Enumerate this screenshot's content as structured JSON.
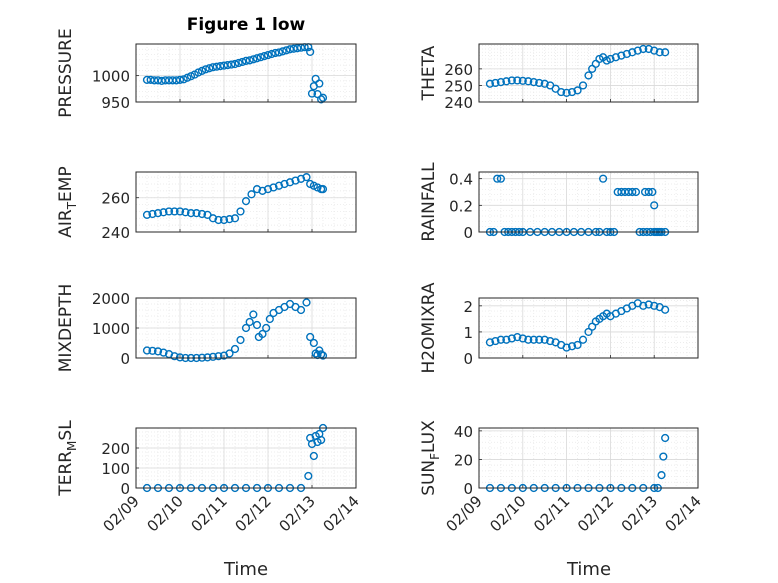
{
  "figure": {
    "title": "Figure 1 low",
    "marker_color": "#0072BD",
    "grid_color": "#e6e6e6",
    "axis_color": "#262626"
  },
  "chart_data": [
    {
      "type": "scatter",
      "ylabel": "PRESSURE",
      "xlim": [
        "02/09",
        "02/14"
      ],
      "ylim": [
        950,
        1060
      ],
      "yticks": [
        "950",
        "1000"
      ],
      "grid": "on",
      "x": [
        "02/09 06:00",
        "02/09 08:00",
        "02/09 10:00",
        "02/09 12:00",
        "02/09 14:00",
        "02/09 16:00",
        "02/09 18:00",
        "02/09 20:00",
        "02/09 22:00",
        "02/10 00:00",
        "02/10 02:00",
        "02/10 04:00",
        "02/10 06:00",
        "02/10 08:00",
        "02/10 10:00",
        "02/10 12:00",
        "02/10 14:00",
        "02/10 16:00",
        "02/10 18:00",
        "02/10 20:00",
        "02/10 22:00",
        "02/11 00:00",
        "02/11 02:00",
        "02/11 04:00",
        "02/11 06:00",
        "02/11 08:00",
        "02/11 10:00",
        "02/11 12:00",
        "02/11 14:00",
        "02/11 16:00",
        "02/11 18:00",
        "02/11 20:00",
        "02/11 22:00",
        "02/12 00:00",
        "02/12 02:00",
        "02/12 04:00",
        "02/12 06:00",
        "02/12 08:00",
        "02/12 10:00",
        "02/12 12:00",
        "02/12 14:00",
        "02/12 16:00",
        "02/12 18:00",
        "02/12 20:00",
        "02/12 22:00",
        "02/12 23:00",
        "02/13 00:00",
        "02/13 01:00",
        "02/13 02:00",
        "02/13 03:00",
        "02/13 04:00",
        "02/13 05:00",
        "02/13 06:00"
      ],
      "y": [
        992,
        992,
        991,
        991,
        990,
        991,
        991,
        991,
        991,
        992,
        993,
        996,
        999,
        1002,
        1006,
        1009,
        1012,
        1014,
        1016,
        1017,
        1018,
        1019,
        1020,
        1021,
        1022,
        1024,
        1026,
        1028,
        1029,
        1031,
        1033,
        1035,
        1037,
        1039,
        1041,
        1043,
        1044,
        1046,
        1048,
        1050,
        1051,
        1052,
        1053,
        1054,
        1054,
        1045,
        966,
        980,
        994,
        965,
        985,
        955,
        958
      ]
    },
    {
      "type": "scatter",
      "ylabel": "THETA",
      "xlim": [
        "02/09",
        "02/14"
      ],
      "ylim": [
        240,
        275
      ],
      "yticks": [
        "240",
        "250",
        "260"
      ],
      "grid": "on",
      "x": [
        "02/09 06:00",
        "02/09 09:00",
        "02/09 12:00",
        "02/09 15:00",
        "02/09 18:00",
        "02/09 21:00",
        "02/10 00:00",
        "02/10 03:00",
        "02/10 06:00",
        "02/10 09:00",
        "02/10 12:00",
        "02/10 15:00",
        "02/10 18:00",
        "02/10 21:00",
        "02/11 00:00",
        "02/11 03:00",
        "02/11 06:00",
        "02/11 09:00",
        "02/11 12:00",
        "02/11 14:00",
        "02/11 16:00",
        "02/11 18:00",
        "02/11 20:00",
        "02/11 22:00",
        "02/12 00:00",
        "02/12 03:00",
        "02/12 06:00",
        "02/12 09:00",
        "02/12 12:00",
        "02/12 15:00",
        "02/12 18:00",
        "02/12 21:00",
        "02/13 00:00",
        "02/13 03:00",
        "02/13 06:00"
      ],
      "y": [
        251,
        251.5,
        252,
        252.5,
        253,
        253,
        252.8,
        252.5,
        252,
        251.5,
        251,
        250,
        248,
        246,
        245.5,
        246,
        247,
        250,
        256,
        260,
        263,
        266,
        267,
        265,
        266,
        267,
        268,
        269,
        270,
        271,
        272,
        272,
        271,
        270,
        270
      ]
    },
    {
      "type": "scatter",
      "ylabel": "AIR_TEMP",
      "xlim": [
        "02/09",
        "02/14"
      ],
      "ylim": [
        240,
        275
      ],
      "yticks": [
        "240",
        "260"
      ],
      "grid": "on",
      "x": [
        "02/09 06:00",
        "02/09 09:00",
        "02/09 12:00",
        "02/09 15:00",
        "02/09 18:00",
        "02/09 21:00",
        "02/10 00:00",
        "02/10 03:00",
        "02/10 06:00",
        "02/10 09:00",
        "02/10 12:00",
        "02/10 15:00",
        "02/10 18:00",
        "02/10 21:00",
        "02/11 00:00",
        "02/11 03:00",
        "02/11 06:00",
        "02/11 09:00",
        "02/11 12:00",
        "02/11 15:00",
        "02/11 18:00",
        "02/11 21:00",
        "02/12 00:00",
        "02/12 03:00",
        "02/12 06:00",
        "02/12 09:00",
        "02/12 12:00",
        "02/12 15:00",
        "02/12 18:00",
        "02/12 21:00",
        "02/12 23:00",
        "02/13 01:00",
        "02/13 03:00",
        "02/13 05:00",
        "02/13 06:00"
      ],
      "y": [
        250,
        250.5,
        251,
        251.5,
        252,
        252,
        252,
        251.5,
        251,
        251,
        250.5,
        250,
        248,
        247,
        247,
        247.5,
        248,
        252,
        258,
        262,
        265,
        264,
        265,
        266,
        267,
        268,
        269,
        270,
        271,
        272,
        268,
        267,
        266,
        265,
        265
      ]
    },
    {
      "type": "scatter",
      "ylabel": "RAINFALL",
      "xlim": [
        "02/09",
        "02/14"
      ],
      "ylim": [
        0,
        0.45
      ],
      "yticks": [
        "0",
        "0.2",
        "0.4"
      ],
      "grid": "on",
      "x": [
        "02/09 06:00",
        "02/09 08:00",
        "02/09 10:00",
        "02/09 12:00",
        "02/09 14:00",
        "02/09 16:00",
        "02/09 18:00",
        "02/09 20:00",
        "02/09 22:00",
        "02/10 00:00",
        "02/10 04:00",
        "02/10 08:00",
        "02/10 12:00",
        "02/10 16:00",
        "02/10 20:00",
        "02/11 00:00",
        "02/11 04:00",
        "02/11 08:00",
        "02/11 12:00",
        "02/11 16:00",
        "02/11 18:00",
        "02/11 20:00",
        "02/11 22:00",
        "02/12 00:00",
        "02/12 02:00",
        "02/12 04:00",
        "02/12 06:00",
        "02/12 08:00",
        "02/12 10:00",
        "02/12 12:00",
        "02/12 14:00",
        "02/12 16:00",
        "02/12 18:00",
        "02/12 20:00",
        "02/12 22:00",
        "02/13 00:00",
        "02/13 01:00",
        "02/13 02:00",
        "02/13 03:00",
        "02/13 04:00",
        "02/13 06:00",
        "02/12 19:00",
        "02/12 21:00",
        "02/12 23:00",
        "02/13 00:00"
      ],
      "y": [
        0,
        0,
        0.4,
        0.4,
        0,
        0,
        0,
        0,
        0,
        0,
        0,
        0,
        0,
        0,
        0,
        0,
        0,
        0,
        0,
        0,
        0,
        0.4,
        0,
        0,
        0,
        0.3,
        0.3,
        0.3,
        0.3,
        0.3,
        0.3,
        0,
        0,
        0,
        0,
        0,
        0,
        0,
        0,
        0,
        0,
        0.3,
        0.3,
        0.3,
        0.2
      ]
    },
    {
      "type": "scatter",
      "ylabel": "MIXDEPTH",
      "xlim": [
        "02/09",
        "02/14"
      ],
      "ylim": [
        0,
        2000
      ],
      "yticks": [
        "0",
        "1000",
        "2000"
      ],
      "grid": "on",
      "x": [
        "02/09 06:00",
        "02/09 09:00",
        "02/09 12:00",
        "02/09 15:00",
        "02/09 18:00",
        "02/09 21:00",
        "02/10 00:00",
        "02/10 03:00",
        "02/10 06:00",
        "02/10 09:00",
        "02/10 12:00",
        "02/10 15:00",
        "02/10 18:00",
        "02/10 21:00",
        "02/11 00:00",
        "02/11 03:00",
        "02/11 06:00",
        "02/11 09:00",
        "02/11 12:00",
        "02/11 14:00",
        "02/11 16:00",
        "02/11 18:00",
        "02/11 19:00",
        "02/11 21:00",
        "02/11 23:00",
        "02/12 01:00",
        "02/12 03:00",
        "02/12 06:00",
        "02/12 09:00",
        "02/12 12:00",
        "02/12 15:00",
        "02/12 18:00",
        "02/12 21:00",
        "02/12 23:00",
        "02/13 01:00",
        "02/13 02:00",
        "02/13 03:00",
        "02/13 04:00",
        "02/13 05:00",
        "02/13 06:00"
      ],
      "y": [
        250,
        240,
        220,
        180,
        130,
        60,
        20,
        0,
        0,
        0,
        10,
        20,
        40,
        60,
        80,
        150,
        300,
        600,
        1000,
        1200,
        1450,
        1100,
        700,
        800,
        1000,
        1300,
        1500,
        1600,
        1700,
        1800,
        1700,
        1600,
        1850,
        700,
        500,
        150,
        100,
        250,
        120,
        80
      ]
    },
    {
      "type": "scatter",
      "ylabel": "H2OMIXRA",
      "xlim": [
        "02/09",
        "02/14"
      ],
      "ylim": [
        0,
        2.3
      ],
      "yticks": [
        "0",
        "1",
        "2"
      ],
      "grid": "on",
      "x": [
        "02/09 06:00",
        "02/09 09:00",
        "02/09 12:00",
        "02/09 15:00",
        "02/09 18:00",
        "02/09 21:00",
        "02/10 00:00",
        "02/10 03:00",
        "02/10 06:00",
        "02/10 09:00",
        "02/10 12:00",
        "02/10 15:00",
        "02/10 18:00",
        "02/10 21:00",
        "02/11 00:00",
        "02/11 03:00",
        "02/11 06:00",
        "02/11 09:00",
        "02/11 12:00",
        "02/11 14:00",
        "02/11 16:00",
        "02/11 18:00",
        "02/11 20:00",
        "02/11 22:00",
        "02/12 00:00",
        "02/12 03:00",
        "02/12 06:00",
        "02/12 09:00",
        "02/12 12:00",
        "02/12 15:00",
        "02/12 18:00",
        "02/12 21:00",
        "02/13 00:00",
        "02/13 03:00",
        "02/13 06:00"
      ],
      "y": [
        0.6,
        0.65,
        0.7,
        0.7,
        0.75,
        0.8,
        0.75,
        0.7,
        0.7,
        0.7,
        0.7,
        0.65,
        0.6,
        0.5,
        0.4,
        0.45,
        0.5,
        0.7,
        1.0,
        1.2,
        1.4,
        1.5,
        1.6,
        1.7,
        1.6,
        1.7,
        1.8,
        1.9,
        2.0,
        2.1,
        2.0,
        2.05,
        2.0,
        1.95,
        1.85
      ]
    },
    {
      "type": "scatter",
      "ylabel": "TERR_MSL",
      "xlim": [
        "02/09",
        "02/14"
      ],
      "ylim": [
        0,
        300
      ],
      "yticks": [
        "0",
        "100",
        "200"
      ],
      "grid": "on",
      "x": [
        "02/09 06:00",
        "02/09 12:00",
        "02/09 18:00",
        "02/10 00:00",
        "02/10 06:00",
        "02/10 12:00",
        "02/10 18:00",
        "02/11 00:00",
        "02/11 06:00",
        "02/11 12:00",
        "02/11 18:00",
        "02/12 00:00",
        "02/12 06:00",
        "02/12 12:00",
        "02/12 18:00",
        "02/12 22:00",
        "02/12 23:00",
        "02/13 00:00",
        "02/13 01:00",
        "02/13 02:00",
        "02/13 03:00",
        "02/13 04:00",
        "02/13 05:00",
        "02/13 06:00"
      ],
      "y": [
        0,
        0,
        0,
        0,
        0,
        0,
        0,
        0,
        0,
        0,
        0,
        0,
        0,
        0,
        0,
        60,
        250,
        220,
        160,
        260,
        230,
        270,
        240,
        300
      ]
    },
    {
      "type": "scatter",
      "ylabel": "SUN_FLUX",
      "xlim": [
        "02/09",
        "02/14"
      ],
      "ylim": [
        0,
        42
      ],
      "yticks": [
        "0",
        "20",
        "40"
      ],
      "grid": "on",
      "x": [
        "02/09 06:00",
        "02/09 12:00",
        "02/09 18:00",
        "02/10 00:00",
        "02/10 06:00",
        "02/10 12:00",
        "02/10 18:00",
        "02/11 00:00",
        "02/11 06:00",
        "02/11 12:00",
        "02/11 18:00",
        "02/12 00:00",
        "02/12 06:00",
        "02/12 12:00",
        "02/12 18:00",
        "02/13 00:00",
        "02/13 02:00",
        "02/13 04:00",
        "02/13 05:00",
        "02/13 06:00"
      ],
      "y": [
        0,
        0,
        0,
        0,
        0,
        0,
        0,
        0,
        0,
        0,
        0,
        0,
        0,
        0,
        0,
        0,
        0,
        9,
        22,
        35
      ]
    }
  ],
  "axes_labels": {
    "xlabel_left": "Time",
    "xlabel_right": "Time",
    "xticks": [
      "02/09",
      "02/10",
      "02/11",
      "02/12",
      "02/13",
      "02/14"
    ],
    "ylabel_air": {
      "base": "AIR",
      "sub": "T",
      "rest": "EMP"
    },
    "ylabel_terr": {
      "base": "TERR",
      "sub": "M",
      "rest": "SL"
    },
    "ylabel_sun": {
      "base": "SUN",
      "sub": "F",
      "rest": "LUX"
    }
  }
}
